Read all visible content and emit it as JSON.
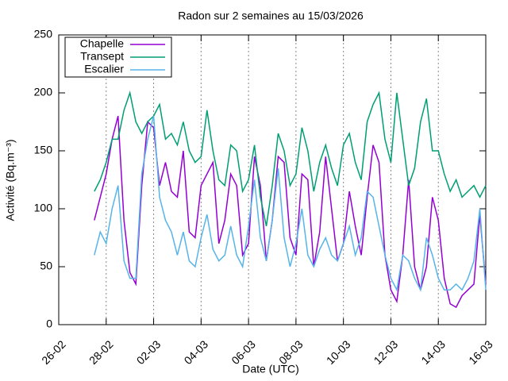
{
  "chart_data": {
    "type": "line",
    "title": "Radon sur 2 semaines au 15/03/2026",
    "x_label": "Date (UTC)",
    "y_label": "Activité (Bq.m⁻³)",
    "legend": "top left",
    "grid": "x",
    "xlim": [
      "2026-02-26 00:00",
      "2026-03-16 00:00"
    ],
    "xticks": [
      {
        "value": "2026-02-26 00:00",
        "label": "26-02"
      },
      {
        "value": "2026-02-28 00:00",
        "label": "28-02"
      },
      {
        "value": "2026-03-02 00:00",
        "label": "02-03"
      },
      {
        "value": "2026-03-04 00:00",
        "label": "04-03"
      },
      {
        "value": "2026-03-06 00:00",
        "label": "06-03"
      },
      {
        "value": "2026-03-08 00:00",
        "label": "08-03"
      },
      {
        "value": "2026-03-10 00:00",
        "label": "10-03"
      },
      {
        "value": "2026-03-12 00:00",
        "label": "12-03"
      },
      {
        "value": "2026-03-14 00:00",
        "label": "14-03"
      },
      {
        "value": "2026-03-16 00:00",
        "label": "16-03"
      }
    ],
    "ylim": [
      0,
      250
    ],
    "yticks": [
      0,
      50,
      100,
      150,
      200,
      250
    ],
    "x": [
      "2026-02-27 12:00",
      "2026-02-27 18:00",
      "2026-02-28 00:00",
      "2026-02-28 06:00",
      "2026-02-28 12:00",
      "2026-02-28 18:00",
      "2026-03-01 00:00",
      "2026-03-01 06:00",
      "2026-03-01 12:00",
      "2026-03-01 18:00",
      "2026-03-02 00:00",
      "2026-03-02 06:00",
      "2026-03-02 12:00",
      "2026-03-02 18:00",
      "2026-03-03 00:00",
      "2026-03-03 06:00",
      "2026-03-03 12:00",
      "2026-03-03 18:00",
      "2026-03-04 00:00",
      "2026-03-04 06:00",
      "2026-03-04 12:00",
      "2026-03-04 18:00",
      "2026-03-05 00:00",
      "2026-03-05 06:00",
      "2026-03-05 12:00",
      "2026-03-05 18:00",
      "2026-03-06 00:00",
      "2026-03-06 06:00",
      "2026-03-06 12:00",
      "2026-03-06 18:00",
      "2026-03-07 00:00",
      "2026-03-07 06:00",
      "2026-03-07 12:00",
      "2026-03-07 18:00",
      "2026-03-08 00:00",
      "2026-03-08 06:00",
      "2026-03-08 12:00",
      "2026-03-08 18:00",
      "2026-03-09 00:00",
      "2026-03-09 06:00",
      "2026-03-09 12:00",
      "2026-03-09 18:00",
      "2026-03-10 00:00",
      "2026-03-10 06:00",
      "2026-03-10 12:00",
      "2026-03-10 18:00",
      "2026-03-11 00:00",
      "2026-03-11 06:00",
      "2026-03-11 12:00",
      "2026-03-11 18:00",
      "2026-03-12 00:00",
      "2026-03-12 06:00",
      "2026-03-12 12:00",
      "2026-03-12 18:00",
      "2026-03-13 00:00",
      "2026-03-13 06:00",
      "2026-03-13 12:00",
      "2026-03-13 18:00",
      "2026-03-14 00:00",
      "2026-03-14 06:00",
      "2026-03-14 12:00",
      "2026-03-14 18:00",
      "2026-03-15 00:00",
      "2026-03-15 06:00",
      "2026-03-15 12:00",
      "2026-03-15 18:00",
      "2026-03-16 00:00"
    ],
    "series": [
      {
        "name": "Chapelle",
        "color": "#9400d3",
        "values": [
          90,
          110,
          130,
          160,
          180,
          90,
          45,
          35,
          120,
          175,
          170,
          120,
          140,
          115,
          110,
          150,
          80,
          75,
          120,
          130,
          140,
          70,
          90,
          130,
          120,
          60,
          70,
          145,
          120,
          55,
          90,
          145,
          140,
          75,
          60,
          130,
          125,
          50,
          80,
          145,
          100,
          55,
          70,
          115,
          85,
          60,
          110,
          155,
          140,
          60,
          30,
          20,
          60,
          125,
          50,
          30,
          50,
          110,
          90,
          40,
          18,
          15,
          25,
          30,
          35,
          95,
          35
        ]
      },
      {
        "name": "Transept",
        "color": "#009e73",
        "values": [
          115,
          125,
          140,
          160,
          160,
          185,
          200,
          175,
          165,
          175,
          180,
          190,
          160,
          165,
          155,
          175,
          150,
          140,
          145,
          185,
          150,
          125,
          120,
          155,
          150,
          115,
          125,
          155,
          110,
          85,
          120,
          165,
          150,
          120,
          130,
          170,
          150,
          115,
          140,
          155,
          135,
          120,
          155,
          165,
          140,
          125,
          175,
          190,
          200,
          160,
          140,
          200,
          160,
          120,
          135,
          175,
          195,
          150,
          150,
          130,
          115,
          125,
          110,
          115,
          120,
          110,
          120
        ]
      },
      {
        "name": "Escalier",
        "color": "#56b4e9",
        "values": [
          60,
          80,
          70,
          100,
          120,
          55,
          40,
          40,
          130,
          160,
          180,
          110,
          90,
          80,
          60,
          80,
          55,
          50,
          75,
          95,
          65,
          55,
          60,
          85,
          60,
          50,
          85,
          125,
          75,
          55,
          90,
          135,
          75,
          50,
          70,
          100,
          60,
          50,
          65,
          75,
          60,
          55,
          70,
          85,
          60,
          75,
          115,
          110,
          85,
          60,
          40,
          30,
          60,
          55,
          40,
          30,
          75,
          60,
          40,
          30,
          30,
          35,
          30,
          40,
          55,
          100,
          30
        ]
      }
    ]
  }
}
